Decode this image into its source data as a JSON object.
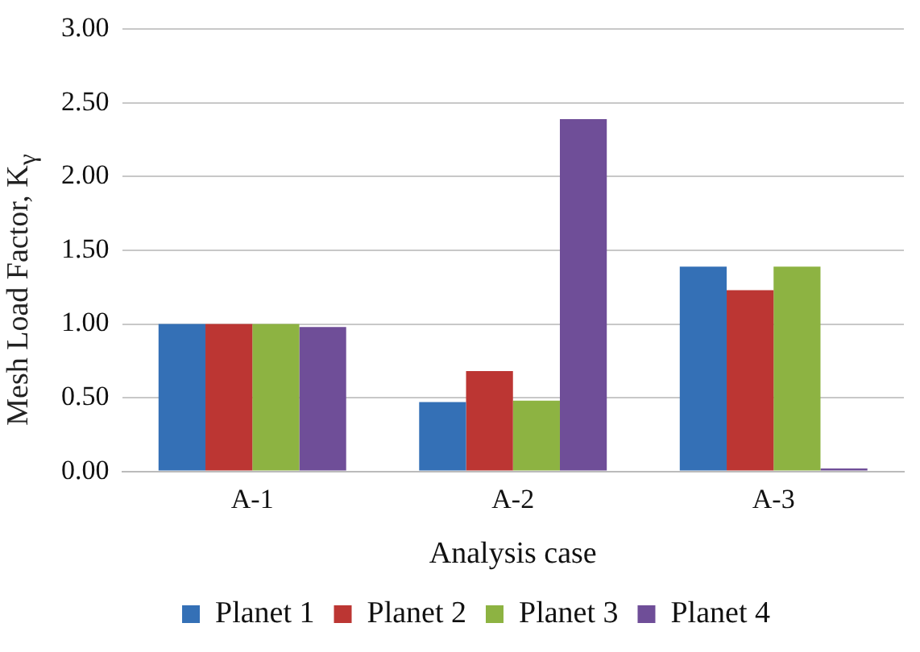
{
  "chart_data": {
    "type": "bar",
    "xlabel": "Analysis case",
    "ylabel": "Mesh Load Factor, K$_{γ}$",
    "categories": [
      "A-1",
      "A-2",
      "A-3"
    ],
    "series": [
      {
        "name": "Planet 1",
        "color": "#3470b6",
        "values": [
          1.0,
          0.47,
          1.39
        ]
      },
      {
        "name": "Planet 2",
        "color": "#bc3633",
        "values": [
          1.0,
          0.68,
          1.23
        ]
      },
      {
        "name": "Planet 3",
        "color": "#8db342",
        "values": [
          1.0,
          0.48,
          1.39
        ]
      },
      {
        "name": "Planet 4",
        "color": "#6f4e98",
        "values": [
          0.98,
          2.39,
          0.02
        ]
      }
    ],
    "ylim": [
      0,
      3
    ],
    "yticks": [
      {
        "value": 0,
        "label": "0.00"
      },
      {
        "value": 0.5,
        "label": "0.50"
      },
      {
        "value": 1,
        "label": "1.00"
      },
      {
        "value": 1.5,
        "label": "1.50"
      },
      {
        "value": 2,
        "label": "2.00"
      },
      {
        "value": 2.5,
        "label": "2.50"
      },
      {
        "value": 3,
        "label": "3.00"
      }
    ],
    "grid": "y",
    "legend": "bottom"
  }
}
